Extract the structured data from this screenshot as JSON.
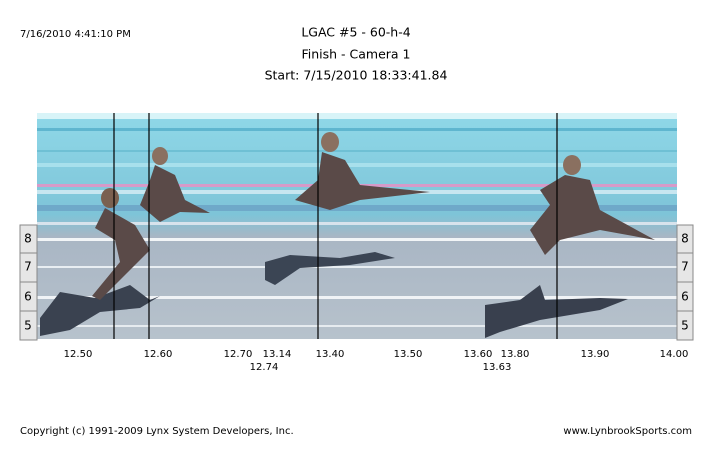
{
  "header": {
    "timestamp": "7/16/2010 4:41:10 PM",
    "title": "LGAC #5 - 60-h-4",
    "subtitle": "Finish - Camera 1",
    "start": "Start: 7/15/2010 18:33:41.84"
  },
  "lanes": {
    "left": [
      "8",
      "7",
      "6",
      "5"
    ],
    "right": [
      "8",
      "7",
      "6",
      "5"
    ]
  },
  "time_labels": {
    "top": [
      "12.50",
      "12.60",
      "12.70",
      "13.14",
      "13.40",
      "13.50",
      "13.60",
      "13.80",
      "13.90",
      "14.00"
    ],
    "bottom": [
      "12.74",
      "13.63"
    ]
  },
  "footer": {
    "copyright": "Copyright (c) 1991-2009 Lynx System Developers, Inc.",
    "site": "www.LynbrookSports.com"
  }
}
